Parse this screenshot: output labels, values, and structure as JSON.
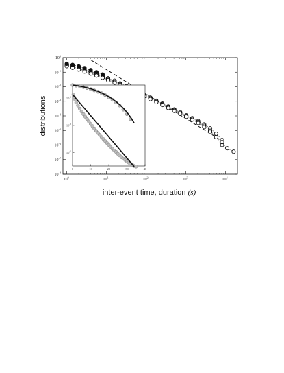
{
  "chart_data": [
    {
      "type": "scatter",
      "xscale": "log",
      "yscale": "log",
      "xlim": [
        0.8,
        20000
      ],
      "ylim": [
        1e-08,
        1
      ],
      "x_ticks": [
        {
          "value": 1,
          "base": "10",
          "exp": "0"
        },
        {
          "value": 10,
          "base": "10",
          "exp": "1"
        },
        {
          "value": 100,
          "base": "10",
          "exp": "2"
        },
        {
          "value": 1000,
          "base": "10",
          "exp": "3"
        },
        {
          "value": 10000,
          "base": "10",
          "exp": "4"
        }
      ],
      "y_ticks": [
        {
          "value": 1,
          "base": "10",
          "exp": "0"
        },
        {
          "value": 0.1,
          "base": "10",
          "exp": "-1"
        },
        {
          "value": 0.01,
          "base": "10",
          "exp": "-2"
        },
        {
          "value": 0.001,
          "base": "10",
          "exp": "-3"
        },
        {
          "value": 0.0001,
          "base": "10",
          "exp": "-4"
        },
        {
          "value": 1e-05,
          "base": "10",
          "exp": "-5"
        },
        {
          "value": 1e-06,
          "base": "10",
          "exp": "-6"
        },
        {
          "value": 1e-07,
          "base": "10",
          "exp": "-7"
        },
        {
          "value": 1e-08,
          "base": "10",
          "exp": "-8"
        }
      ],
      "xlabel_text": "inter-event time, duration",
      "xlabel_unit": "(s)",
      "ylabel": "distributions",
      "grid": false,
      "series": [
        {
          "marker": "open-circle",
          "color": "#111111",
          "x": [
            1,
            1.4,
            2,
            2.8,
            4,
            5.6,
            8,
            11,
            16,
            22,
            32,
            45,
            64,
            90,
            128,
            180,
            256,
            360,
            512,
            720,
            1024,
            1450,
            2048,
            2900,
            4096,
            5800,
            8192
          ],
          "y": [
            0.35,
            0.28,
            0.2,
            0.15,
            0.11,
            0.08,
            0.055,
            0.038,
            0.026,
            0.017,
            0.011,
            0.0072,
            0.0046,
            0.0029,
            0.0018,
            0.0011,
            0.0007,
            0.00044,
            0.00028,
            0.00018,
            0.00011,
            7e-05,
            4.4e-05,
            2.6e-05,
            1.4e-05,
            6e-06,
            2.2e-06
          ]
        },
        {
          "marker": "open-circle",
          "color": "#111111",
          "x": [
            1,
            1.4,
            2,
            2.8,
            4,
            5.6,
            8,
            11,
            16,
            22,
            32,
            45,
            64,
            90,
            128,
            180,
            256,
            360,
            512,
            720,
            1024,
            1450,
            2048,
            2900,
            4096,
            5800,
            8192
          ],
          "y": [
            0.3,
            0.24,
            0.17,
            0.13,
            0.095,
            0.068,
            0.047,
            0.032,
            0.022,
            0.015,
            0.0095,
            0.0062,
            0.004,
            0.0025,
            0.0016,
            0.001,
            0.00063,
            0.0004,
            0.00025,
            0.00016,
            0.0001,
            6.4e-05,
            3.8e-05,
            2.1e-05,
            9.5e-06,
            3.5e-06,
            1e-06
          ]
        },
        {
          "marker": "open-circle",
          "color": "#111111",
          "x": [
            1,
            1.4,
            2,
            2.8,
            4,
            5.6,
            8,
            11,
            16,
            22,
            32,
            45,
            64,
            90,
            128,
            180,
            256,
            360,
            512,
            720,
            1024,
            1450,
            2048,
            2900,
            4096,
            5800,
            8192,
            11000,
            16000
          ],
          "y": [
            0.26,
            0.2,
            0.15,
            0.11,
            0.08,
            0.058,
            0.041,
            0.028,
            0.019,
            0.013,
            0.0082,
            0.0054,
            0.0035,
            0.0022,
            0.0014,
            0.00088,
            0.00056,
            0.00035,
            0.00022,
            0.00014,
            8.8e-05,
            5.5e-05,
            3.2e-05,
            1.7e-05,
            8e-06,
            3.5e-06,
            1.6e-06,
            6e-07,
            3.5e-07
          ]
        },
        {
          "marker": "filled-circle",
          "color": "#111111",
          "x": [
            1,
            1.4,
            2,
            2.8,
            4,
            5.6,
            8
          ],
          "y": [
            0.38,
            0.32,
            0.25,
            0.19,
            0.14,
            0.1,
            0.07
          ]
        }
      ],
      "guide_line": {
        "style": "dashed",
        "x": [
          4,
          8000
        ],
        "y": [
          0.7,
          2e-06
        ]
      },
      "fit_curve": {
        "style": "dotted",
        "x": [
          1,
          4
        ],
        "y": [
          0.4,
          0.15
        ]
      }
    },
    {
      "type": "scatter",
      "inset": true,
      "xscale": "linear",
      "yscale": "log",
      "xlim": [
        0,
        40
      ],
      "ylim": [
        1e-06,
        1
      ],
      "x_ticks": [
        "0",
        "10",
        "20",
        "30",
        "40"
      ],
      "y_ticks": [
        {
          "value": 0.1,
          "base": "10",
          "exp": "-1"
        },
        {
          "value": 0.001,
          "base": "10",
          "exp": "-3"
        },
        {
          "value": 1e-05,
          "base": "10",
          "exp": "-5"
        }
      ],
      "series": [
        {
          "marker": "grey-circle",
          "color": "#9a9a9a",
          "x": [
            0.5,
            1,
            1.5,
            2,
            3,
            4,
            5,
            6,
            7,
            8,
            9,
            10,
            11,
            12,
            13,
            14,
            15,
            16,
            17,
            18,
            19,
            20,
            21,
            22,
            23,
            24,
            25,
            26,
            27,
            28,
            29,
            30,
            31,
            32,
            33,
            34,
            35
          ],
          "y": [
            0.2,
            0.12,
            0.08,
            0.05,
            0.03,
            0.018,
            0.011,
            0.007,
            0.0045,
            0.003,
            0.002,
            0.0013,
            0.0009,
            0.0006,
            0.0004,
            0.00028,
            0.0002,
            0.00014,
            0.0001,
            7e-05,
            5e-05,
            3.6e-05,
            2.6e-05,
            1.9e-05,
            1.4e-05,
            1.1e-05,
            8e-06,
            6e-06,
            4.5e-06,
            3.5e-06,
            2.8e-06,
            2.2e-06,
            1.8e-06,
            1.5e-06,
            1.2e-06,
            1e-06,
            9e-07
          ]
        }
      ],
      "fit_line": {
        "style": "solid",
        "x": [
          0,
          34
        ],
        "y": [
          0.2,
          9e-07
        ]
      },
      "upper_series": {
        "marker": "grey-circle",
        "color": "#9a9a9a",
        "x": [
          0,
          2,
          4,
          6,
          8,
          10,
          12,
          14,
          16,
          18,
          20,
          22,
          24,
          26,
          28,
          30,
          32
        ],
        "y": [
          1,
          0.9,
          0.8,
          0.7,
          0.6,
          0.5,
          0.4,
          0.32,
          0.25,
          0.18,
          0.12,
          0.08,
          0.05,
          0.03,
          0.015,
          0.007,
          0.003
        ]
      },
      "upper_fit": {
        "style": "solid",
        "x": [
          0,
          34
        ],
        "y": [
          1,
          0.0015
        ]
      }
    }
  ]
}
